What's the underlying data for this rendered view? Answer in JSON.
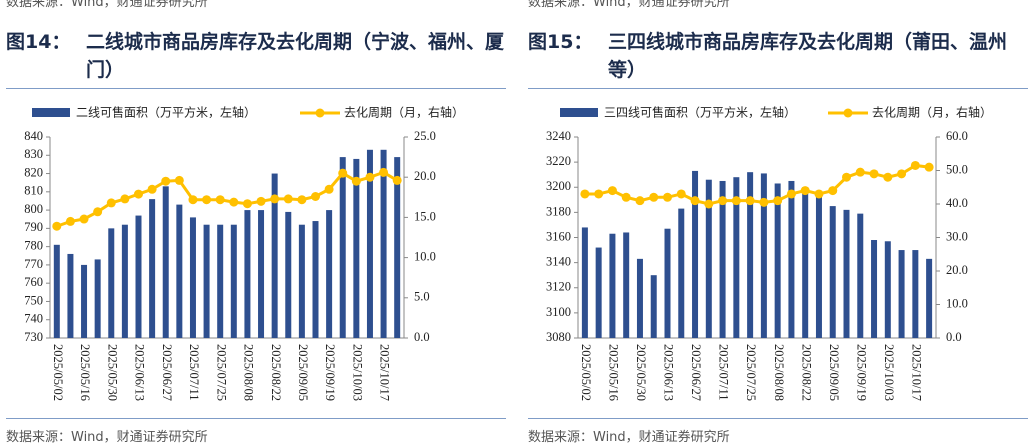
{
  "top_sources": [
    "数据来源：Wind，财通证券研究所",
    "数据来源：Wind，财通证券研究所"
  ],
  "figures": [
    {
      "label": "图14：",
      "title": "二线城市商品房库存及去化周期（宁波、福州、厦门）",
      "source": "数据来源：Wind，财通证券研究所"
    },
    {
      "label": "图15：",
      "title": "三四线城市商品房库存及去化周期（莆田、温州等）",
      "source": "数据来源：Wind，财通证券研究所"
    }
  ],
  "chart_data": [
    {
      "type": "bar_line",
      "categories": [
        "2025/05/02",
        null,
        "2025/05/16",
        null,
        "2025/05/30",
        null,
        "2025/06/13",
        null,
        "2025/06/27",
        null,
        "2025/07/11",
        null,
        "2025/07/25",
        null,
        "2025/08/08",
        null,
        "2025/08/22",
        null,
        "2025/09/05",
        null,
        "2025/09/19",
        null,
        "2025/10/03",
        null,
        "2025/10/17",
        null
      ],
      "series": [
        {
          "name": "二线可售面积（万平方米，左轴）",
          "color": "#2e4f8f",
          "kind": "bar",
          "values": [
            781,
            776,
            770,
            773,
            790,
            792,
            797,
            806,
            813,
            803,
            796,
            792,
            792,
            792,
            800,
            800,
            820,
            799,
            792,
            794,
            800,
            829,
            828,
            833,
            833,
            829
          ]
        },
        {
          "name": "去化周期（月，右轴）",
          "color": "#ffc000",
          "kind": "line",
          "axis": "y2",
          "values": [
            13.9,
            14.5,
            14.8,
            15.7,
            16.8,
            17.3,
            17.9,
            18.5,
            19.5,
            19.6,
            17.2,
            17.2,
            17.2,
            16.9,
            16.7,
            17.0,
            17.3,
            17.3,
            17.2,
            17.6,
            18.5,
            20.5,
            19.5,
            20.0,
            20.6,
            19.6
          ]
        }
      ],
      "ylim": [
        730,
        840
      ],
      "yticks": [
        730,
        740,
        750,
        760,
        770,
        780,
        790,
        800,
        810,
        820,
        830,
        840
      ],
      "y2lim": [
        0,
        25
      ],
      "y2ticks": [
        {
          "value": 0,
          "label": "0.0"
        },
        {
          "value": 5,
          "label": "5.0"
        },
        {
          "value": 10,
          "label": "10.0"
        },
        {
          "value": 15,
          "label": "15.0"
        },
        {
          "value": 20,
          "label": "20.0"
        },
        {
          "value": 25,
          "label": "25.0"
        }
      ],
      "legend": "top",
      "grid": false
    },
    {
      "type": "bar_line",
      "categories": [
        "2025/05/02",
        null,
        "2025/05/16",
        null,
        "2025/05/30",
        null,
        "2025/06/13",
        null,
        "2025/06/27",
        null,
        "2025/07/11",
        null,
        "2025/07/25",
        null,
        "2025/08/08",
        null,
        "2025/08/22",
        null,
        "2025/09/05",
        null,
        "2025/09/19",
        null,
        "2025/10/03",
        null,
        "2025/10/17",
        null
      ],
      "series": [
        {
          "name": "三四线可售面积（万平方米，左轴）",
          "color": "#2e4f8f",
          "kind": "bar",
          "values": [
            3168,
            3152,
            3163,
            3164,
            3143,
            3130,
            3167,
            3183,
            3213,
            3206,
            3205,
            3208,
            3212,
            3211,
            3203,
            3205,
            3200,
            3196,
            3185,
            3182,
            3179,
            3158,
            3157,
            3150,
            3150,
            3143
          ]
        },
        {
          "name": "去化周期（月，右轴）",
          "color": "#ffc000",
          "kind": "line",
          "axis": "y2",
          "values": [
            43,
            43,
            44,
            42,
            41,
            42,
            42,
            43,
            41,
            40,
            41,
            41,
            41,
            40.5,
            41,
            43,
            44,
            43,
            44,
            48,
            49.5,
            49,
            48,
            49,
            51.5,
            51
          ]
        }
      ],
      "ylim": [
        3080,
        3240
      ],
      "yticks": [
        3080,
        3100,
        3120,
        3140,
        3160,
        3180,
        3200,
        3220,
        3240
      ],
      "y2lim": [
        0,
        60
      ],
      "y2ticks": [
        {
          "value": 0,
          "label": "0.0"
        },
        {
          "value": 10,
          "label": "10.0"
        },
        {
          "value": 20,
          "label": "20.0"
        },
        {
          "value": 30,
          "label": "30.0"
        },
        {
          "value": 40,
          "label": "40.0"
        },
        {
          "value": 50,
          "label": "50.0"
        },
        {
          "value": 60,
          "label": "60.0"
        }
      ],
      "legend": "top",
      "grid": false
    }
  ]
}
